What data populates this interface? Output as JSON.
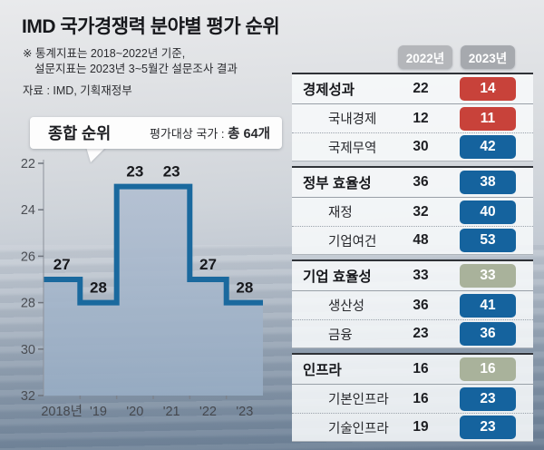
{
  "header": {
    "title": "IMD 국가경쟁력 분야별 평가 순위",
    "note_line1": "※ 통계지표는 2018~2022년 기준,",
    "note_line2": "설문지표는 2023년 3~5월간 설문조사 결과",
    "source": "자료 : IMD, 기획재정부"
  },
  "bubble": {
    "label": "종합 순위",
    "target_label": "평가대상 국가 : ",
    "target_value": "총 64개"
  },
  "chart_data": {
    "type": "area",
    "subtype": "step",
    "title": "종합 순위",
    "categories": [
      "2018년",
      "'19",
      "'20",
      "'21",
      "'22",
      "'23"
    ],
    "values": [
      27,
      28,
      23,
      23,
      27,
      28
    ],
    "yticks": [
      22,
      24,
      26,
      28,
      30,
      32
    ],
    "ylim": [
      32,
      22
    ],
    "y_inverted": true,
    "grid": false,
    "line_color": "#1a699e",
    "fill_color_top": "#b3c0d2",
    "fill_color_bottom": "#97acc3"
  },
  "table": {
    "col_2022": "2022년",
    "col_2023": "2023년",
    "badge_colors": {
      "red": "#c8423a",
      "blue": "#15639e",
      "sage": "#a9b29b",
      "header": "#b4b6ba"
    },
    "groups": [
      {
        "rows": [
          {
            "label": "경제성과",
            "v2022": "22",
            "v2023": "14",
            "badge": "red"
          },
          {
            "label": "국내경제",
            "v2022": "12",
            "v2023": "11",
            "badge": "red"
          },
          {
            "label": "국제무역",
            "v2022": "30",
            "v2023": "42",
            "badge": "blue"
          }
        ]
      },
      {
        "rows": [
          {
            "label": "정부 효율성",
            "v2022": "36",
            "v2023": "38",
            "badge": "blue"
          },
          {
            "label": "재정",
            "v2022": "32",
            "v2023": "40",
            "badge": "blue"
          },
          {
            "label": "기업여건",
            "v2022": "48",
            "v2023": "53",
            "badge": "blue"
          }
        ]
      },
      {
        "rows": [
          {
            "label": "기업 효율성",
            "v2022": "33",
            "v2023": "33",
            "badge": "sage"
          },
          {
            "label": "생산성",
            "v2022": "36",
            "v2023": "41",
            "badge": "blue"
          },
          {
            "label": "금융",
            "v2022": "23",
            "v2023": "36",
            "badge": "blue"
          }
        ]
      },
      {
        "rows": [
          {
            "label": "인프라",
            "v2022": "16",
            "v2023": "16",
            "badge": "sage"
          },
          {
            "label": "기본인프라",
            "v2022": "16",
            "v2023": "23",
            "badge": "blue"
          },
          {
            "label": "기술인프라",
            "v2022": "19",
            "v2023": "23",
            "badge": "blue"
          }
        ]
      }
    ]
  }
}
